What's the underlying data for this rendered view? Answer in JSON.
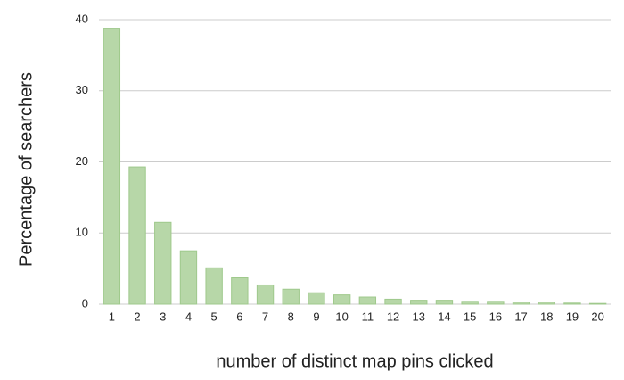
{
  "chart_data": {
    "type": "bar",
    "y_label": "Percentage of searchers",
    "x_label": "number of distinct map pins clicked",
    "categories": [
      "1",
      "2",
      "3",
      "4",
      "5",
      "6",
      "7",
      "8",
      "9",
      "10",
      "11",
      "12",
      "13",
      "14",
      "15",
      "16",
      "17",
      "18",
      "19",
      "20"
    ],
    "values": [
      38.8,
      19.3,
      11.5,
      7.5,
      5.1,
      3.7,
      2.7,
      2.1,
      1.6,
      1.3,
      1.0,
      0.7,
      0.55,
      0.55,
      0.4,
      0.4,
      0.3,
      0.3,
      0.15,
      0.1
    ],
    "color": "#b7d7a8",
    "ylim": [
      0,
      40
    ],
    "yticks": [
      0,
      10,
      20,
      30,
      40
    ],
    "grid": true
  }
}
